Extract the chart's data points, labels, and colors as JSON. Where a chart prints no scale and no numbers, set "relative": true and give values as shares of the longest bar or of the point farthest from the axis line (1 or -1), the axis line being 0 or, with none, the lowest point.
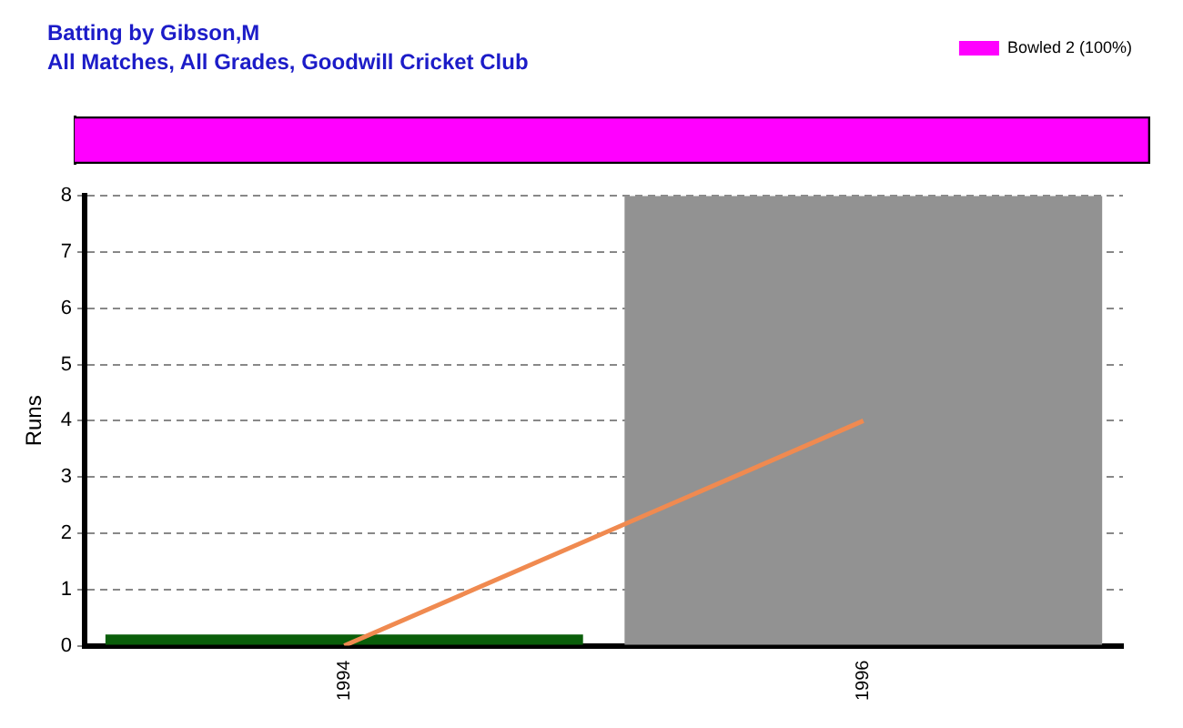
{
  "chart_data": [
    {
      "type": "bar",
      "title": "Batting by Gibson,M",
      "subtitle": "All Matches, All Grades, Goodwill Cricket Club",
      "orientation": "horizontal",
      "relative": true,
      "categories": [
        null
      ],
      "legend": "top right",
      "series": [
        {
          "name": "Bowled 2 (100%)",
          "color": "#ff00ff",
          "values": [
            1
          ]
        }
      ]
    },
    {
      "type": "bar",
      "ylabel": "Runs",
      "categories": [
        "1994",
        "1996"
      ],
      "ylim": [
        0,
        8
      ],
      "yticks": [
        0,
        1,
        2,
        3,
        4,
        5,
        6,
        7,
        8
      ],
      "grid": "y",
      "series": [
        {
          "colors": [
            "#0a5e0a",
            "#929292"
          ],
          "values": [
            0.2,
            8
          ]
        },
        {
          "type": "line",
          "color": "#f08a50",
          "values": [
            0,
            4
          ],
          "marker": "none",
          "line_style": "solid"
        }
      ]
    }
  ]
}
